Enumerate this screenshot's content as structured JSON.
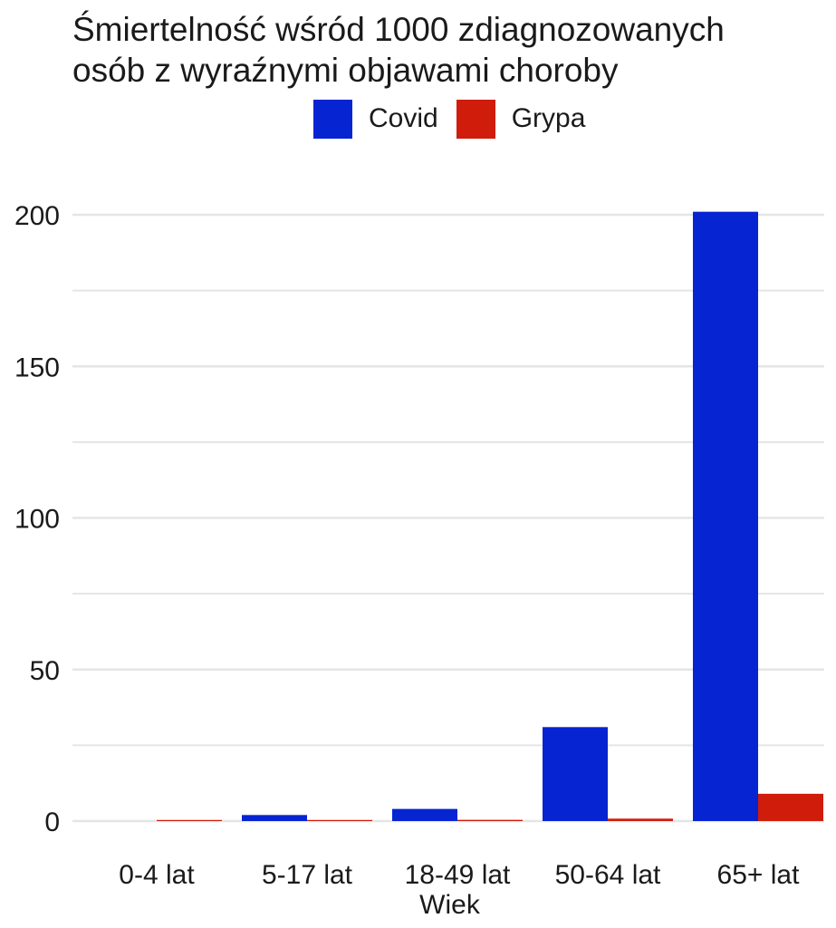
{
  "chart_data": {
    "type": "bar",
    "title": "Śmiertelność wśród 1000 zdiagnozowanych\nosób z wyraźnymi objawami choroby",
    "xlabel": "Wiek",
    "ylabel": "",
    "categories": [
      "0-4 lat",
      "5-17 lat",
      "18-49 lat",
      "50-64 lat",
      "65+ lat"
    ],
    "series": [
      {
        "name": "Covid",
        "color": "#0624D1",
        "values": [
          0,
          2,
          4,
          31,
          201
        ]
      },
      {
        "name": "Grypa",
        "color": "#D01C0B",
        "values": [
          0.3,
          0.1,
          0.4,
          0.8,
          9
        ]
      }
    ],
    "ylim": [
      0,
      200
    ],
    "yticks": [
      0,
      50,
      100,
      150,
      200
    ],
    "grid": true,
    "legend_position": "top",
    "grid_color": "#E5E5E5"
  }
}
